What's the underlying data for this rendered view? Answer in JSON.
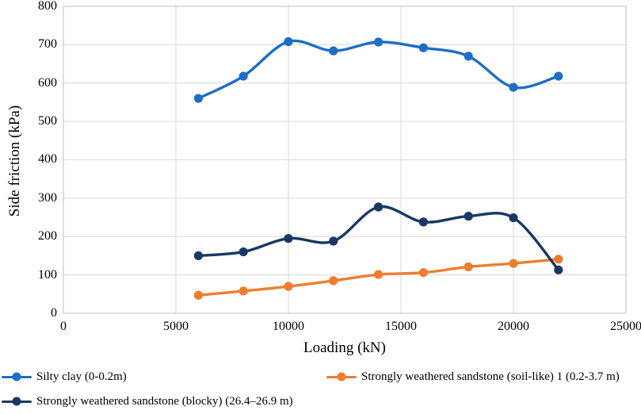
{
  "chart_data": {
    "type": "line",
    "title": "",
    "xlabel": "Loading (kN)",
    "ylabel": "Side friction (kPa)",
    "x": [
      6000,
      8000,
      10000,
      12000,
      14000,
      16000,
      18000,
      20000,
      22000
    ],
    "series": [
      {
        "name": "Silty clay (0-0.2m)",
        "color": "#1D6EC6",
        "values": [
          560,
          618,
          708,
          684,
          707,
          692,
          670,
          589,
          618
        ]
      },
      {
        "name": "Strongly weathered sandstone (soil-like) 1 (0.2-3.7 m)",
        "color": "#EE7D2F",
        "values": [
          47,
          58,
          70,
          85,
          101,
          106,
          121,
          130,
          141
        ]
      },
      {
        "name": "Strongly weathered sandstone (blocky) (26.4–26.9 m)",
        "color": "#1A3864",
        "values": [
          150,
          160,
          195,
          188,
          277,
          238,
          253,
          249,
          113
        ]
      }
    ],
    "xlim": [
      0,
      25000
    ],
    "ylim": [
      0,
      800
    ],
    "x_ticks": [
      "0",
      "5000",
      "10000",
      "15000",
      "20000",
      "25000"
    ],
    "y_ticks": [
      "800",
      "700",
      "600",
      "500",
      "400",
      "300",
      "200",
      "100",
      "0"
    ],
    "grid": true,
    "grid_color": "#D9D9D9",
    "axis_color": "#BFBFBF",
    "marker": "circle",
    "line_smooth": true,
    "legend_position": "bottom"
  }
}
